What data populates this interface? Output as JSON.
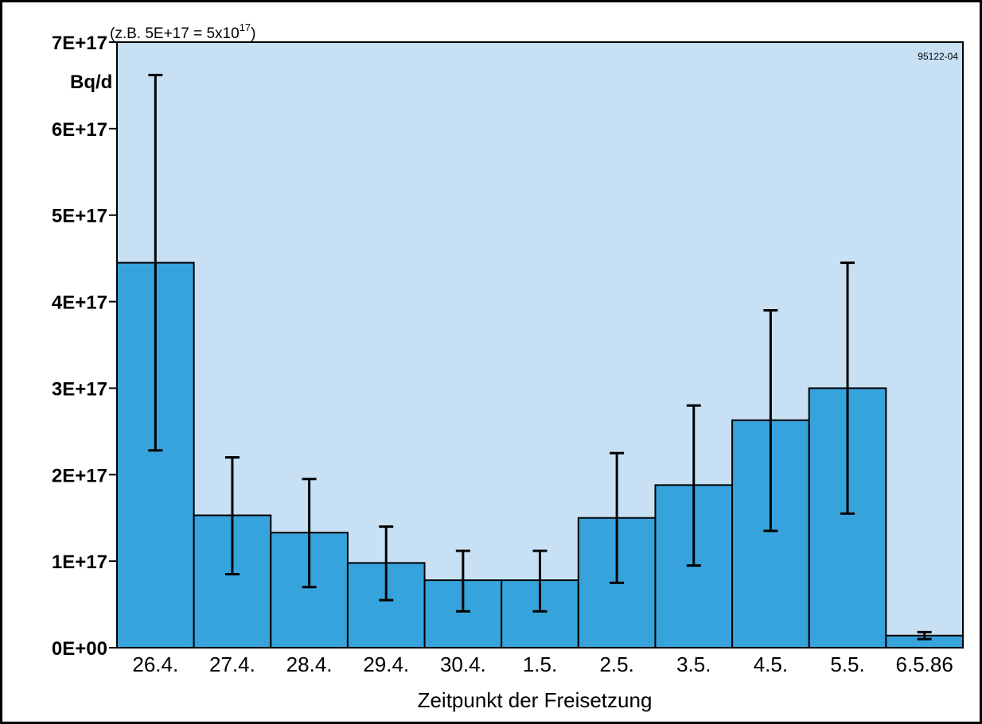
{
  "colors": {
    "plot_background": "#c7e0f4",
    "bar_fill": "#37a3dc",
    "bar_stroke": "#000000",
    "error_bar": "#000000",
    "frame": "#000000"
  },
  "chart_data": {
    "type": "bar",
    "title": "",
    "annotation": "(z.B. 5E+17 = 5x10",
    "annotation_superscript": "17",
    "annotation_close": ")",
    "figure_id": "95122-04",
    "ylabel": "Bq/d",
    "xlabel": "Zeitpunkt der Freisetzung",
    "ylim": [
      0,
      7e+17
    ],
    "ytick_values": [
      0,
      1e+17,
      2e+17,
      3e+17,
      4e+17,
      5e+17,
      6e+17,
      7e+17
    ],
    "ytick_labels": [
      "0E+00",
      "1E+17",
      "2E+17",
      "3E+17",
      "4E+17",
      "5E+17",
      "6E+17",
      "7E+17"
    ],
    "categories": [
      "26.4.",
      "27.4.",
      "28.4.",
      "29.4.",
      "30.4.",
      "1.5.",
      "2.5.",
      "3.5.",
      "4.5.",
      "5.5.",
      "6.5.86"
    ],
    "values": [
      4.45e+17,
      1.53e+17,
      1.33e+17,
      9.8e+16,
      7.8e+16,
      7.8e+16,
      1.5e+17,
      1.88e+17,
      2.63e+17,
      3e+17,
      1.4e+16
    ],
    "error_low": [
      2.28e+17,
      8.5e+16,
      7e+16,
      5.5e+16,
      4.2e+16,
      4.2e+16,
      7.5e+16,
      9.5e+16,
      1.35e+17,
      1.55e+17,
      1e+16
    ],
    "error_high": [
      6.62e+17,
      2.2e+17,
      1.95e+17,
      1.4e+17,
      1.12e+17,
      1.12e+17,
      2.25e+17,
      2.8e+17,
      3.9e+17,
      4.45e+17,
      1.8e+16
    ],
    "grid": false,
    "legend": "none"
  }
}
